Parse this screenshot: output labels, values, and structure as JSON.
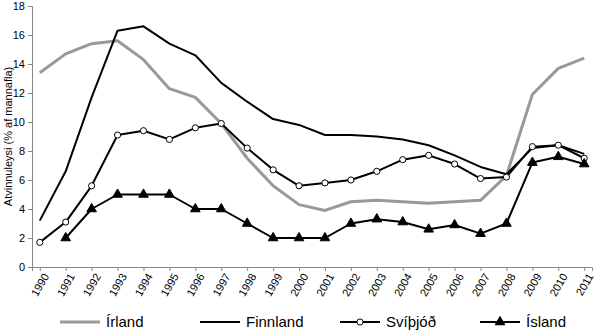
{
  "chart_data": {
    "type": "line",
    "y_label": "Atvinnuleysi (% af mannafla)",
    "categories": [
      "1990",
      "1991",
      "1992",
      "1993",
      "1994",
      "1995",
      "1996",
      "1997",
      "1998",
      "1999",
      "2000",
      "2001",
      "2002",
      "2003",
      "2004",
      "2005",
      "2006",
      "2007",
      "2008",
      "2009",
      "2010",
      "2011"
    ],
    "ylim": [
      0,
      18
    ],
    "yticks": [
      0,
      2,
      4,
      6,
      8,
      10,
      12,
      14,
      16,
      18
    ],
    "grid": false,
    "legend": "bottom",
    "series": [
      {
        "name": "Írland",
        "color": "#999999",
        "marker": "none",
        "values": [
          13.4,
          14.7,
          15.4,
          15.6,
          14.3,
          12.3,
          11.7,
          9.9,
          7.5,
          5.6,
          4.3,
          3.9,
          4.5,
          4.6,
          4.5,
          4.4,
          4.5,
          4.6,
          6.3,
          11.9,
          13.7,
          14.4
        ]
      },
      {
        "name": "Finnland",
        "color": "#000000",
        "marker": "none",
        "values": [
          3.2,
          6.6,
          11.7,
          16.3,
          16.6,
          15.4,
          14.6,
          12.7,
          11.4,
          10.2,
          9.8,
          9.1,
          9.1,
          9.0,
          8.8,
          8.4,
          7.7,
          6.9,
          6.4,
          8.2,
          8.4,
          7.8
        ]
      },
      {
        "name": "Svíþjóð",
        "color": "#000000",
        "marker": "circle",
        "values": [
          1.7,
          3.1,
          5.6,
          9.1,
          9.4,
          8.8,
          9.6,
          9.9,
          8.2,
          6.7,
          5.6,
          5.8,
          6.0,
          6.6,
          7.4,
          7.7,
          7.1,
          6.1,
          6.2,
          8.3,
          8.4,
          7.5
        ]
      },
      {
        "name": "Ísland",
        "color": "#000000",
        "marker": "triangle",
        "values": [
          null,
          2.0,
          4.0,
          5.0,
          5.0,
          5.0,
          4.0,
          4.0,
          3.0,
          2.0,
          2.0,
          2.0,
          3.0,
          3.3,
          3.1,
          2.6,
          2.9,
          2.3,
          3.0,
          7.2,
          7.6,
          7.1
        ]
      }
    ]
  }
}
